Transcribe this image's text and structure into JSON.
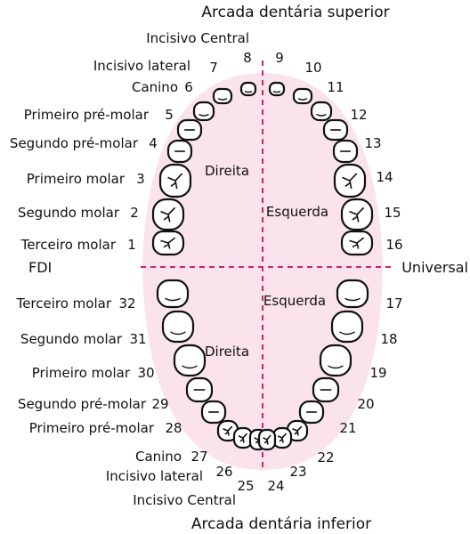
{
  "titles": {
    "top": "Arcada dentária superior",
    "bottom": "Arcada dentária inferior"
  },
  "systems": {
    "left": "FDI",
    "right": "Universal"
  },
  "regions": {
    "upper_left": "Direita",
    "upper_right": "Esquerda",
    "lower_left": "Direita",
    "lower_right": "Esquerda"
  },
  "upper_left": [
    {
      "name": "Incisivo Central",
      "num": "8"
    },
    {
      "name": "Incisivo lateral",
      "num": "7"
    },
    {
      "name": "Canino",
      "num": "6"
    },
    {
      "name": "Primeiro pré-molar",
      "num": "5"
    },
    {
      "name": "Segundo pré-molar",
      "num": "4"
    },
    {
      "name": "Primeiro molar",
      "num": "3"
    },
    {
      "name": "Segundo molar",
      "num": "2"
    },
    {
      "name": "Terceiro molar",
      "num": "1"
    }
  ],
  "upper_right_nums": [
    "9",
    "10",
    "11",
    "12",
    "13",
    "14",
    "15",
    "16"
  ],
  "lower_left": [
    {
      "name": "Terceiro molar",
      "num": "32"
    },
    {
      "name": "Segundo molar",
      "num": "31"
    },
    {
      "name": "Primeiro molar",
      "num": "30"
    },
    {
      "name": "Segundo pré-molar",
      "num": "29"
    },
    {
      "name": "Primeiro pré-molar",
      "num": "28"
    },
    {
      "name": "Canino",
      "num": "27"
    },
    {
      "name": "Incisivo lateral",
      "num": "26"
    },
    {
      "name": "Incisivo Central",
      "num": "25"
    }
  ],
  "lower_right_nums": [
    "17",
    "18",
    "19",
    "20",
    "21",
    "22",
    "23",
    "24"
  ],
  "colors": {
    "arch_fill": "#fbe3ec",
    "guide_line": "#d6206e",
    "tooth_fill": "#ffffff",
    "tooth_stroke": "#111111"
  }
}
